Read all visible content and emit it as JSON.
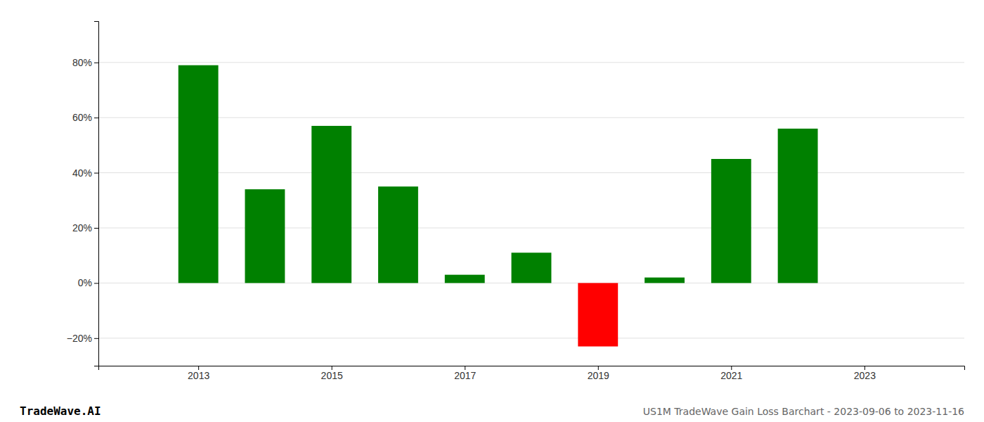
{
  "chart_data": {
    "type": "bar",
    "title": "US1M TradeWave Gain Loss Barchart - 2023-09-06 to 2023-11-16",
    "annotations": [
      "TradeWave.AI"
    ],
    "x": [
      2013,
      2014,
      2015,
      2016,
      2017,
      2018,
      2019,
      2020,
      2021,
      2022
    ],
    "values": [
      0.79,
      0.34,
      0.57,
      0.35,
      0.03,
      0.11,
      -0.23,
      0.02,
      0.45,
      0.56
    ],
    "colors": [
      "#008000",
      "#008000",
      "#008000",
      "#008000",
      "#008000",
      "#008000",
      "#ff0000",
      "#008000",
      "#008000",
      "#008000"
    ],
    "xlim": [
      2011.5,
      2024.5
    ],
    "xticks": [
      2013,
      2015,
      2017,
      2019,
      2021,
      2023
    ],
    "ylim": [
      -0.3,
      0.95
    ],
    "yticks": [
      {
        "value": -0.2,
        "label": "−20%"
      },
      {
        "value": 0.0,
        "label": "0%"
      },
      {
        "value": 0.2,
        "label": "20%"
      },
      {
        "value": 0.4,
        "label": "40%"
      },
      {
        "value": 0.6,
        "label": "60%"
      },
      {
        "value": 0.8,
        "label": "80%"
      }
    ],
    "grid": true
  }
}
